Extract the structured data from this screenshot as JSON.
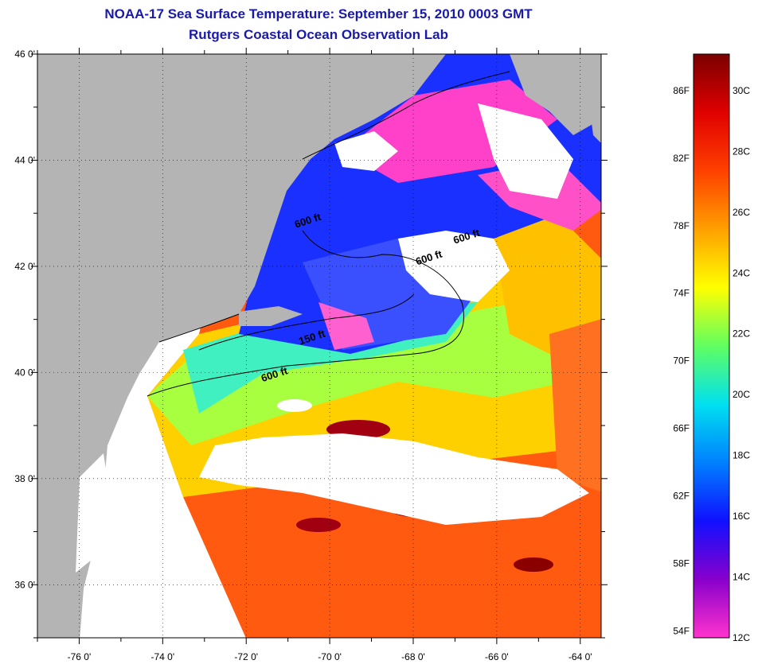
{
  "title": {
    "line1": "NOAA-17 Sea Surface Temperature:  September 15, 2010 0003 GMT",
    "line2": "Rutgers Coastal Ocean Observation Lab"
  },
  "axes": {
    "lat_labels": [
      {
        "value": 46,
        "text": "46 0'"
      },
      {
        "value": 44,
        "text": "44 0'"
      },
      {
        "value": 42,
        "text": "42 0'"
      },
      {
        "value": 40,
        "text": "40 0'"
      },
      {
        "value": 38,
        "text": "38 0'"
      },
      {
        "value": 36,
        "text": "36 0'"
      }
    ],
    "lon_labels": [
      {
        "value": -76,
        "text": "-76 0'"
      },
      {
        "value": -74,
        "text": "-74 0'"
      },
      {
        "value": -72,
        "text": "-72 0'"
      },
      {
        "value": -70,
        "text": "-70 0'"
      },
      {
        "value": -68,
        "text": "-68 0'"
      },
      {
        "value": -66,
        "text": "-66 0'"
      },
      {
        "value": -64,
        "text": "-64 0'"
      }
    ],
    "lat_range": [
      35,
      46
    ],
    "lon_range": [
      -77,
      -63.5
    ]
  },
  "contours": [
    {
      "label": "600 ft",
      "lon": -70.5,
      "lat": 42.8
    },
    {
      "label": "600 ft",
      "lon": -66.7,
      "lat": 42.5
    },
    {
      "label": "600 ft",
      "lon": -67.6,
      "lat": 42.1
    },
    {
      "label": "150 ft",
      "lon": -70.4,
      "lat": 40.6
    },
    {
      "label": "600 ft",
      "lon": -71.3,
      "lat": 39.9
    }
  ],
  "colorbar": {
    "f_labels": [
      {
        "value": 86,
        "text": "86F"
      },
      {
        "value": 82,
        "text": "82F"
      },
      {
        "value": 78,
        "text": "78F"
      },
      {
        "value": 74,
        "text": "74F"
      },
      {
        "value": 70,
        "text": "70F"
      },
      {
        "value": 66,
        "text": "66F"
      },
      {
        "value": 62,
        "text": "62F"
      },
      {
        "value": 58,
        "text": "58F"
      },
      {
        "value": 54,
        "text": "54F"
      }
    ],
    "c_labels": [
      {
        "value": 30,
        "text": "30C"
      },
      {
        "value": 28,
        "text": "28C"
      },
      {
        "value": 26,
        "text": "26C"
      },
      {
        "value": 24,
        "text": "24C"
      },
      {
        "value": 22,
        "text": "22C"
      },
      {
        "value": 20,
        "text": "20C"
      },
      {
        "value": 18,
        "text": "18C"
      },
      {
        "value": 16,
        "text": "16C"
      },
      {
        "value": 14,
        "text": "14C"
      },
      {
        "value": 12,
        "text": "12C"
      }
    ],
    "range_c": [
      12,
      31.2
    ],
    "colors": [
      "#ff33cc",
      "#8800cc",
      "#1010ff",
      "#0080ff",
      "#00e0f0",
      "#60ff60",
      "#ffff00",
      "#ffa000",
      "#ff4000",
      "#e00000",
      "#7a0000"
    ]
  },
  "map_colors": {
    "land": "#b4b4b4",
    "cloud": "#ffffff",
    "frame": "#000000"
  }
}
